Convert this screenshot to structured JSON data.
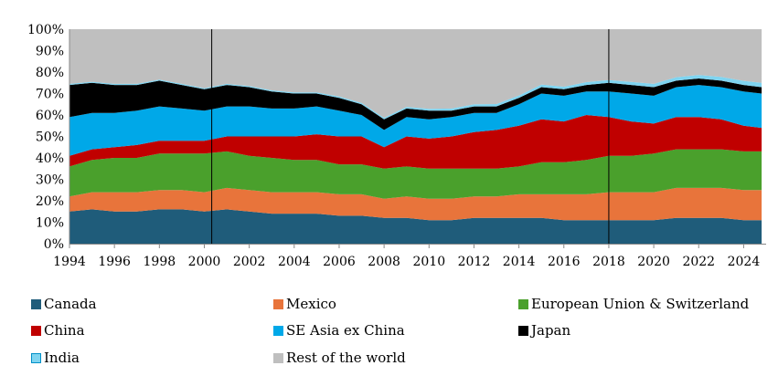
{
  "chart_data": {
    "type": "area",
    "stacked": true,
    "title": "",
    "xlabel": "",
    "ylabel": "",
    "ylim": [
      0,
      100
    ],
    "y_ticks": [
      "0%",
      "10%",
      "20%",
      "30%",
      "40%",
      "50%",
      "60%",
      "70%",
      "80%",
      "90%",
      "100%"
    ],
    "x_ticks": [
      "1994",
      "1996",
      "1998",
      "2000",
      "2002",
      "2004",
      "2006",
      "2008",
      "2010",
      "2012",
      "2014",
      "2016",
      "2018",
      "2020",
      "2022",
      "2024"
    ],
    "xlim": [
      1994,
      2025
    ],
    "vertical_markers": [
      2000.33,
      2018.0
    ],
    "x": [
      1994,
      1995,
      1996,
      1997,
      1998,
      1999,
      2000,
      2001,
      2002,
      2003,
      2004,
      2005,
      2006,
      2007,
      2008,
      2009,
      2010,
      2011,
      2012,
      2013,
      2014,
      2015,
      2016,
      2017,
      2018,
      2019,
      2020,
      2021,
      2022,
      2023,
      2024,
      2024.8
    ],
    "series": [
      {
        "name": "Canada",
        "color": "#1f5c7a",
        "values": [
          15,
          16,
          15,
          15,
          16,
          16,
          15,
          16,
          15,
          14,
          14,
          14,
          13,
          13,
          12,
          12,
          11,
          11,
          12,
          12,
          12,
          12,
          11,
          11,
          11,
          11,
          11,
          12,
          12,
          12,
          11,
          11
        ]
      },
      {
        "name": "Mexico",
        "color": "#e8743b",
        "values": [
          7,
          8,
          9,
          9,
          9,
          9,
          9,
          10,
          10,
          10,
          10,
          10,
          10,
          10,
          9,
          10,
          10,
          10,
          10,
          10,
          11,
          11,
          12,
          12,
          13,
          13,
          13,
          14,
          14,
          14,
          14,
          14
        ]
      },
      {
        "name": "European Union & Switzerland",
        "color": "#4aa02c",
        "values": [
          14,
          15,
          16,
          16,
          17,
          17,
          18,
          17,
          16,
          16,
          15,
          15,
          14,
          14,
          14,
          14,
          14,
          14,
          13,
          13,
          13,
          15,
          15,
          16,
          17,
          17,
          18,
          18,
          18,
          18,
          18,
          18
        ]
      },
      {
        "name": "China",
        "color": "#c00000",
        "values": [
          5,
          5,
          5,
          6,
          6,
          6,
          6,
          7,
          9,
          10,
          11,
          12,
          13,
          13,
          10,
          14,
          14,
          15,
          17,
          18,
          19,
          20,
          19,
          21,
          18,
          16,
          14,
          15,
          15,
          14,
          12,
          11
        ]
      },
      {
        "name": "SE Asia ex China",
        "color": "#00a8e8",
        "values": [
          18,
          17,
          16,
          16,
          16,
          15,
          14,
          14,
          14,
          13,
          13,
          13,
          12,
          10,
          8,
          9,
          9,
          9,
          9,
          8,
          10,
          12,
          12,
          11,
          12,
          13,
          13,
          14,
          15,
          15,
          16,
          16
        ]
      },
      {
        "name": "Japan",
        "color": "#000000",
        "values": [
          15,
          14,
          13,
          12,
          12,
          11,
          10,
          10,
          9,
          8,
          7,
          6,
          6,
          5,
          5,
          4,
          4,
          3,
          3,
          3,
          3,
          3,
          3,
          3,
          4,
          4,
          4,
          3,
          3,
          3,
          3,
          3
        ]
      },
      {
        "name": "India",
        "color": "#7fd4f0",
        "values": [
          0.5,
          0.5,
          0.5,
          0.5,
          0.5,
          0.5,
          0.5,
          0.5,
          0.5,
          0.5,
          0.5,
          0.5,
          0.6,
          0.6,
          0.7,
          0.8,
          0.9,
          1.0,
          1.0,
          1.1,
          1.1,
          1.2,
          1.2,
          1.3,
          1.3,
          1.4,
          1.5,
          1.6,
          1.7,
          1.8,
          1.9,
          2.0
        ]
      },
      {
        "name": "Rest of the world",
        "color": "#bfbfbf",
        "values": [
          25.5,
          24.5,
          25.5,
          25.5,
          23.5,
          25.5,
          27.5,
          25.5,
          26.5,
          28.5,
          29.5,
          29.5,
          31.4,
          34.4,
          41.3,
          36.2,
          37.1,
          37,
          35,
          34.9,
          30.9,
          25.8,
          26.8,
          24.7,
          23.7,
          24.6,
          25.5,
          22.4,
          21.3,
          22.2,
          24.1,
          25
        ]
      }
    ],
    "legend_placement": "bottom"
  },
  "legend": {
    "items": [
      {
        "label": "Canada",
        "color": "#1f5c7a"
      },
      {
        "label": "Mexico",
        "color": "#e8743b"
      },
      {
        "label": "European Union & Switzerland",
        "color": "#4aa02c"
      },
      {
        "label": "China",
        "color": "#c00000"
      },
      {
        "label": "SE Asia ex China",
        "color": "#00a8e8"
      },
      {
        "label": "Japan",
        "color": "#000000"
      },
      {
        "label": "India",
        "color": "#7fd4f0"
      },
      {
        "label": "Rest of the world",
        "color": "#bfbfbf"
      }
    ]
  }
}
